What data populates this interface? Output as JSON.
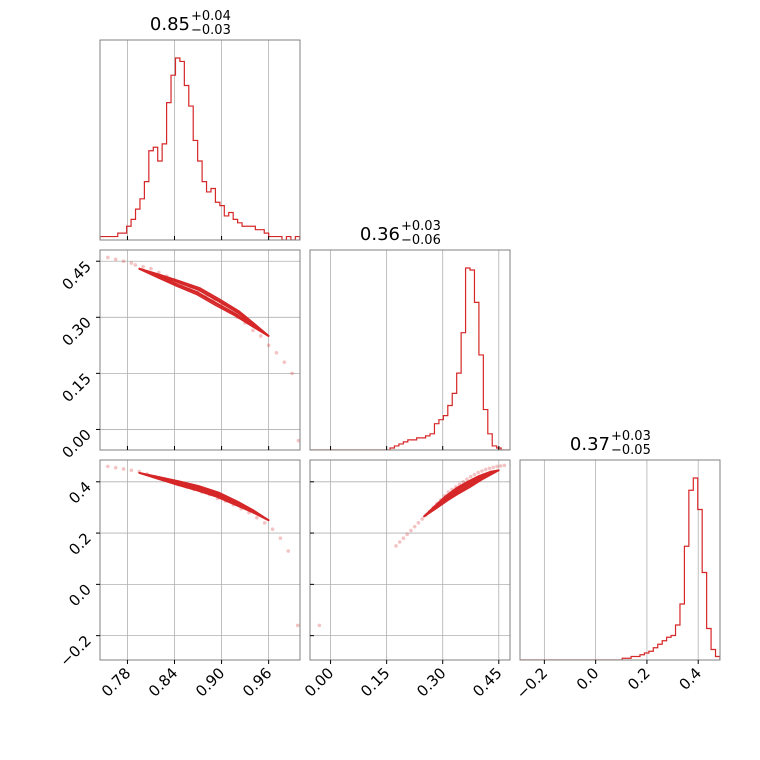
{
  "chart_data": {
    "type": "corner",
    "color": "#d62728",
    "grid": true,
    "parameters": [
      {
        "index": 0,
        "median": "0.85",
        "plus": "+0.04",
        "minus": "−0.03",
        "range": [
          0.745,
          1.0
        ]
      },
      {
        "index": 1,
        "median": "0.36",
        "plus": "+0.03",
        "minus": "−0.06",
        "range": [
          -0.055,
          0.48
        ]
      },
      {
        "index": 2,
        "median": "0.37",
        "plus": "+0.03",
        "minus": "−0.05",
        "range": [
          -0.295,
          0.485
        ]
      }
    ],
    "tick_labels": {
      "p0": [
        "0.78",
        "0.84",
        "0.90",
        "0.96"
      ],
      "p1": [
        "0.00",
        "0.15",
        "0.30",
        "0.45"
      ],
      "p2": [
        "−0.2",
        "0.0",
        "0.2",
        "0.4"
      ]
    },
    "tick_values": {
      "p0": [
        0.78,
        0.84,
        0.9,
        0.96
      ],
      "p1": [
        0.0,
        0.15,
        0.3,
        0.45
      ],
      "p2": [
        -0.2,
        0.0,
        0.2,
        0.4
      ]
    },
    "histograms": [
      {
        "param": 0,
        "bin_start": 0.745,
        "bin_width": 0.00566,
        "counts": [
          1,
          1,
          1,
          1,
          2,
          2,
          4,
          6,
          9,
          12,
          17,
          26,
          27,
          23,
          28,
          40,
          48,
          53,
          52,
          45,
          39,
          29,
          23,
          17,
          14,
          15,
          11,
          10,
          7,
          8,
          6,
          5,
          4,
          4,
          4,
          3,
          3,
          2,
          1,
          1,
          1,
          0,
          1,
          0,
          1
        ]
      },
      {
        "param": 1,
        "bin_start": -0.055,
        "bin_width": 0.01189,
        "counts": [
          0,
          0,
          0,
          0,
          0,
          0,
          0,
          0,
          0,
          0,
          0,
          0,
          0,
          0,
          0,
          0,
          0,
          0,
          1,
          2,
          3,
          4,
          5,
          5,
          6,
          6,
          7,
          8,
          13,
          15,
          17,
          22,
          28,
          38,
          58,
          90,
          89,
          73,
          47,
          20,
          8,
          2,
          1,
          0,
          0
        ]
      },
      {
        "param": 2,
        "bin_start": -0.295,
        "bin_width": 0.01733,
        "counts": [
          0,
          0,
          0,
          0,
          0,
          0,
          0,
          0,
          0,
          0,
          0,
          0,
          0,
          0,
          0,
          0,
          0,
          0,
          0,
          0,
          0,
          0,
          0,
          1,
          1,
          2,
          2,
          3,
          4,
          5,
          7,
          9,
          11,
          13,
          14,
          20,
          32,
          65,
          97,
          104,
          86,
          50,
          18,
          6,
          2
        ]
      }
    ],
    "scatter_pairs": [
      {
        "x_param": 0,
        "y_param": 1,
        "points": [
          [
            0.755,
            0.46
          ],
          [
            0.765,
            0.455
          ],
          [
            0.775,
            0.45
          ],
          [
            0.785,
            0.445
          ],
          [
            0.79,
            0.44
          ],
          [
            0.8,
            0.435
          ],
          [
            0.81,
            0.43
          ],
          [
            0.82,
            0.42
          ],
          [
            0.83,
            0.41
          ],
          [
            0.84,
            0.4
          ],
          [
            0.85,
            0.39
          ],
          [
            0.86,
            0.38
          ],
          [
            0.87,
            0.37
          ],
          [
            0.88,
            0.355
          ],
          [
            0.89,
            0.345
          ],
          [
            0.9,
            0.33
          ],
          [
            0.91,
            0.315
          ],
          [
            0.92,
            0.3
          ],
          [
            0.93,
            0.285
          ],
          [
            0.94,
            0.265
          ],
          [
            0.95,
            0.25
          ],
          [
            0.96,
            0.225
          ],
          [
            0.97,
            0.205
          ],
          [
            0.98,
            0.18
          ],
          [
            0.99,
            0.15
          ],
          [
            0.998,
            -0.03
          ]
        ]
      },
      {
        "x_param": 0,
        "y_param": 2,
        "points": [
          [
            0.755,
            0.46
          ],
          [
            0.765,
            0.455
          ],
          [
            0.775,
            0.45
          ],
          [
            0.785,
            0.445
          ],
          [
            0.795,
            0.44
          ],
          [
            0.805,
            0.43
          ],
          [
            0.815,
            0.42
          ],
          [
            0.825,
            0.41
          ],
          [
            0.835,
            0.4
          ],
          [
            0.845,
            0.39
          ],
          [
            0.855,
            0.38
          ],
          [
            0.865,
            0.37
          ],
          [
            0.875,
            0.36
          ],
          [
            0.885,
            0.35
          ],
          [
            0.895,
            0.335
          ],
          [
            0.905,
            0.325
          ],
          [
            0.915,
            0.31
          ],
          [
            0.925,
            0.295
          ],
          [
            0.935,
            0.28
          ],
          [
            0.945,
            0.26
          ],
          [
            0.955,
            0.24
          ],
          [
            0.965,
            0.215
          ],
          [
            0.975,
            0.18
          ],
          [
            0.985,
            0.13
          ],
          [
            0.997,
            -0.16
          ]
        ]
      },
      {
        "x_param": 1,
        "y_param": 2,
        "points": [
          [
            0.175,
            0.15
          ],
          [
            0.185,
            0.165
          ],
          [
            0.195,
            0.18
          ],
          [
            0.205,
            0.195
          ],
          [
            0.215,
            0.21
          ],
          [
            0.225,
            0.225
          ],
          [
            0.235,
            0.24
          ],
          [
            0.245,
            0.255
          ],
          [
            0.255,
            0.27
          ],
          [
            0.265,
            0.285
          ],
          [
            0.275,
            0.3
          ],
          [
            0.285,
            0.315
          ],
          [
            0.295,
            0.33
          ],
          [
            0.305,
            0.345
          ],
          [
            0.315,
            0.36
          ],
          [
            0.325,
            0.37
          ],
          [
            0.335,
            0.38
          ],
          [
            0.345,
            0.39
          ],
          [
            0.355,
            0.4
          ],
          [
            0.365,
            0.41
          ],
          [
            0.375,
            0.42
          ],
          [
            0.385,
            0.428
          ],
          [
            0.395,
            0.436
          ],
          [
            0.405,
            0.442
          ],
          [
            0.415,
            0.448
          ],
          [
            0.425,
            0.452
          ],
          [
            0.435,
            0.456
          ],
          [
            0.445,
            0.46
          ],
          [
            0.455,
            0.462
          ],
          [
            0.465,
            0.464
          ],
          [
            -0.03,
            -0.16
          ]
        ]
      }
    ],
    "contour_bands": [
      {
        "x_param": 0,
        "y_param": 1,
        "ridge": [
          [
            0.795,
            0.43
          ],
          [
            0.82,
            0.41
          ],
          [
            0.845,
            0.39
          ],
          [
            0.87,
            0.37
          ],
          [
            0.895,
            0.34
          ],
          [
            0.92,
            0.31
          ],
          [
            0.94,
            0.28
          ],
          [
            0.96,
            0.25
          ]
        ],
        "half_widths": [
          0.01,
          0.006,
          0.003
        ]
      },
      {
        "x_param": 0,
        "y_param": 2,
        "ridge": [
          [
            0.795,
            0.435
          ],
          [
            0.82,
            0.415
          ],
          [
            0.845,
            0.395
          ],
          [
            0.87,
            0.375
          ],
          [
            0.895,
            0.35
          ],
          [
            0.92,
            0.315
          ],
          [
            0.94,
            0.285
          ],
          [
            0.96,
            0.25
          ]
        ],
        "half_widths": [
          0.01,
          0.006,
          0.003
        ]
      },
      {
        "x_param": 1,
        "y_param": 2,
        "ridge": [
          [
            0.25,
            0.265
          ],
          [
            0.28,
            0.3
          ],
          [
            0.31,
            0.335
          ],
          [
            0.34,
            0.365
          ],
          [
            0.37,
            0.39
          ],
          [
            0.4,
            0.415
          ],
          [
            0.43,
            0.435
          ],
          [
            0.45,
            0.445
          ]
        ],
        "half_widths": [
          0.012,
          0.007,
          0.003
        ]
      }
    ]
  }
}
